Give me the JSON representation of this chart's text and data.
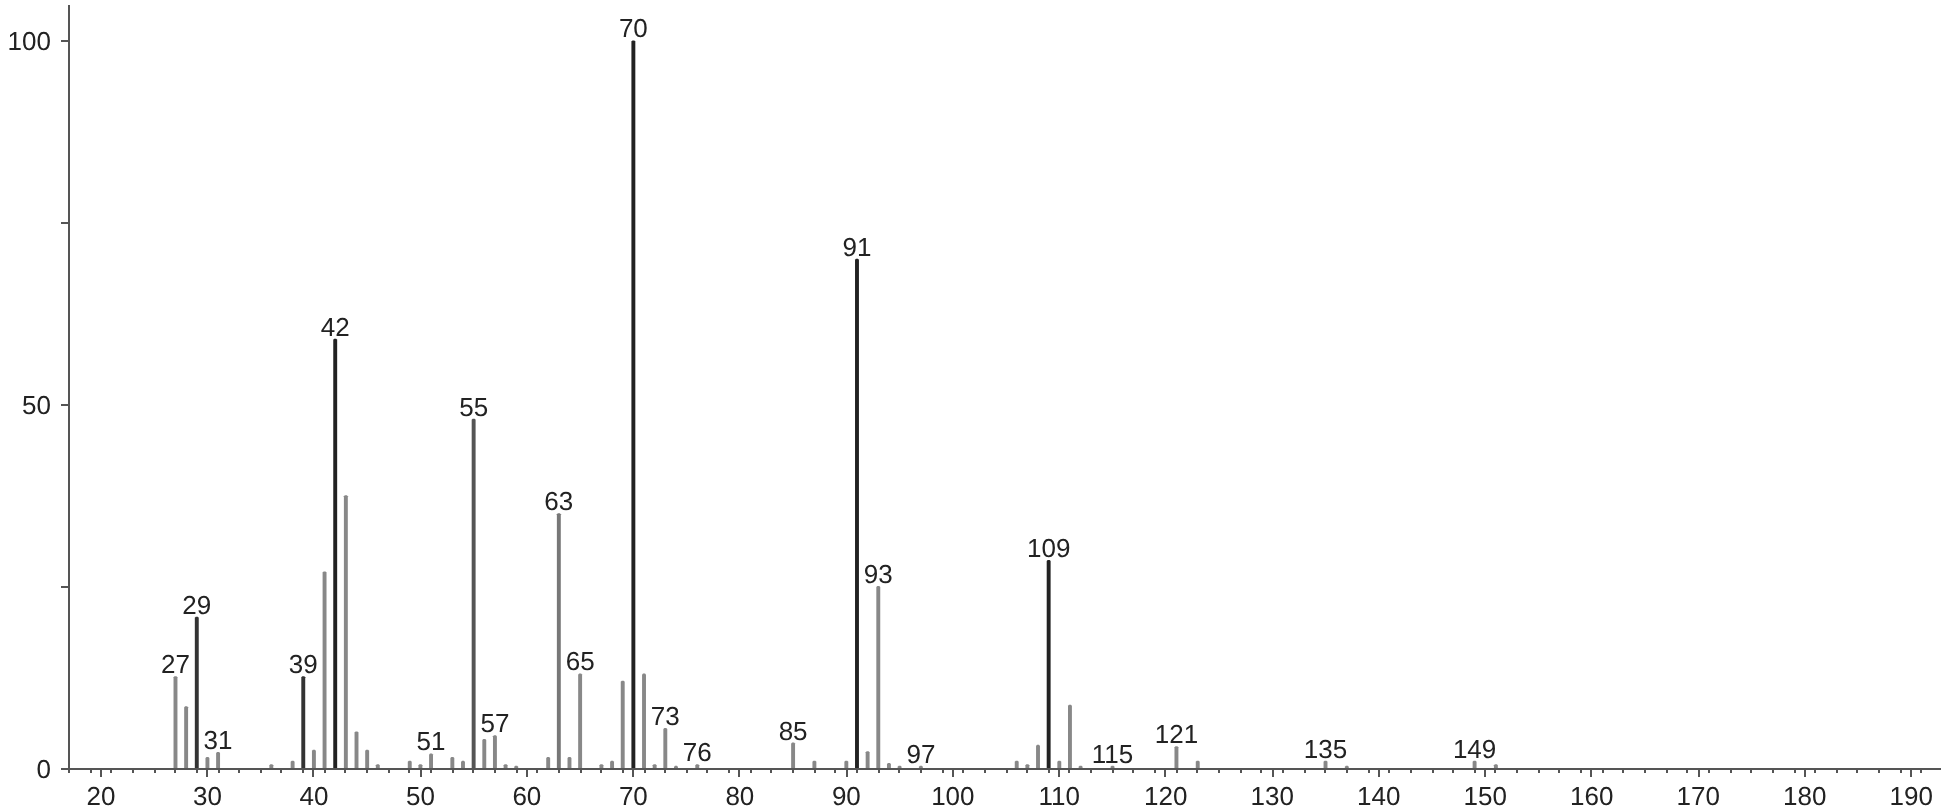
{
  "chart_data": {
    "type": "bar",
    "x": [
      27,
      28,
      29,
      30,
      31,
      36,
      38,
      39,
      40,
      41,
      42,
      43,
      44,
      45,
      46,
      49,
      50,
      51,
      53,
      54,
      55,
      56,
      57,
      58,
      59,
      62,
      63,
      64,
      65,
      67,
      68,
      69,
      70,
      71,
      72,
      73,
      74,
      76,
      85,
      87,
      90,
      91,
      92,
      93,
      94,
      95,
      97,
      106,
      107,
      108,
      109,
      110,
      111,
      112,
      115,
      121,
      123,
      135,
      137,
      149,
      151
    ],
    "values": [
      12.6,
      8.5,
      20.8,
      1.5,
      2.2,
      0.5,
      1,
      12.6,
      2.5,
      27,
      59,
      37.5,
      5,
      2.5,
      0.5,
      1,
      0.5,
      2,
      1.5,
      1,
      48,
      4,
      4.5,
      0.5,
      0.3,
      1.5,
      35,
      1.5,
      13,
      0.5,
      1,
      12,
      100,
      13,
      0.5,
      5.5,
      0.3,
      0.5,
      3.5,
      1,
      1,
      70,
      2.3,
      25,
      0.7,
      0.3,
      0.3,
      1,
      0.5,
      3.2,
      28.6,
      1,
      8.7,
      0.3,
      0.3,
      3,
      1,
      1,
      0.3,
      1,
      0.5
    ],
    "annotations": [
      {
        "text": "27",
        "x": 27,
        "y": 12.6
      },
      {
        "text": "29",
        "x": 29,
        "y": 20.8
      },
      {
        "text": "31",
        "x": 31,
        "y": 2.2
      },
      {
        "text": "39",
        "x": 39,
        "y": 12.6
      },
      {
        "text": "42",
        "x": 42,
        "y": 59
      },
      {
        "text": "51",
        "x": 51,
        "y": 2
      },
      {
        "text": "55",
        "x": 55,
        "y": 48
      },
      {
        "text": "57",
        "x": 57,
        "y": 4.5
      },
      {
        "text": "63",
        "x": 63,
        "y": 35
      },
      {
        "text": "65",
        "x": 65,
        "y": 13
      },
      {
        "text": "70",
        "x": 70,
        "y": 100
      },
      {
        "text": "73",
        "x": 73,
        "y": 5.5
      },
      {
        "text": "76",
        "x": 76,
        "y": 0.5
      },
      {
        "text": "85",
        "x": 85,
        "y": 3.5
      },
      {
        "text": "91",
        "x": 91,
        "y": 70
      },
      {
        "text": "93",
        "x": 93,
        "y": 25
      },
      {
        "text": "97",
        "x": 97,
        "y": 0.3
      },
      {
        "text": "109",
        "x": 109,
        "y": 28.6
      },
      {
        "text": "115",
        "x": 115,
        "y": 0.3
      },
      {
        "text": "121",
        "x": 121,
        "y": 3
      },
      {
        "text": "135",
        "x": 135,
        "y": 1
      },
      {
        "text": "149",
        "x": 149,
        "y": 1
      }
    ],
    "colors": [
      "#888888",
      "#888888",
      "#333333",
      "#888888",
      "#888888",
      "#888888",
      "#888888",
      "#333333",
      "#888888",
      "#888888",
      "#222222",
      "#888888",
      "#888888",
      "#888888",
      "#888888",
      "#888888",
      "#888888",
      "#888888",
      "#888888",
      "#888888",
      "#555555",
      "#888888",
      "#888888",
      "#888888",
      "#888888",
      "#888888",
      "#777777",
      "#888888",
      "#888888",
      "#888888",
      "#888888",
      "#888888",
      "#222222",
      "#888888",
      "#888888",
      "#888888",
      "#888888",
      "#888888",
      "#888888",
      "#888888",
      "#888888",
      "#222222",
      "#888888",
      "#888888",
      "#888888",
      "#888888",
      "#888888",
      "#888888",
      "#888888",
      "#888888",
      "#222222",
      "#888888",
      "#888888",
      "#888888",
      "#888888",
      "#888888",
      "#888888",
      "#888888",
      "#888888",
      "#888888",
      "#888888"
    ],
    "xlim": [
      17,
      192.8
    ],
    "ylim": [
      0,
      105
    ],
    "xticks": [
      20,
      30,
      40,
      50,
      60,
      70,
      80,
      90,
      100,
      110,
      120,
      130,
      140,
      150,
      160,
      170,
      180,
      190
    ],
    "yticks": [
      0,
      {
        "value": 25,
        "label": null
      },
      50,
      {
        "value": 75,
        "label": null
      },
      100
    ],
    "grid": false
  }
}
